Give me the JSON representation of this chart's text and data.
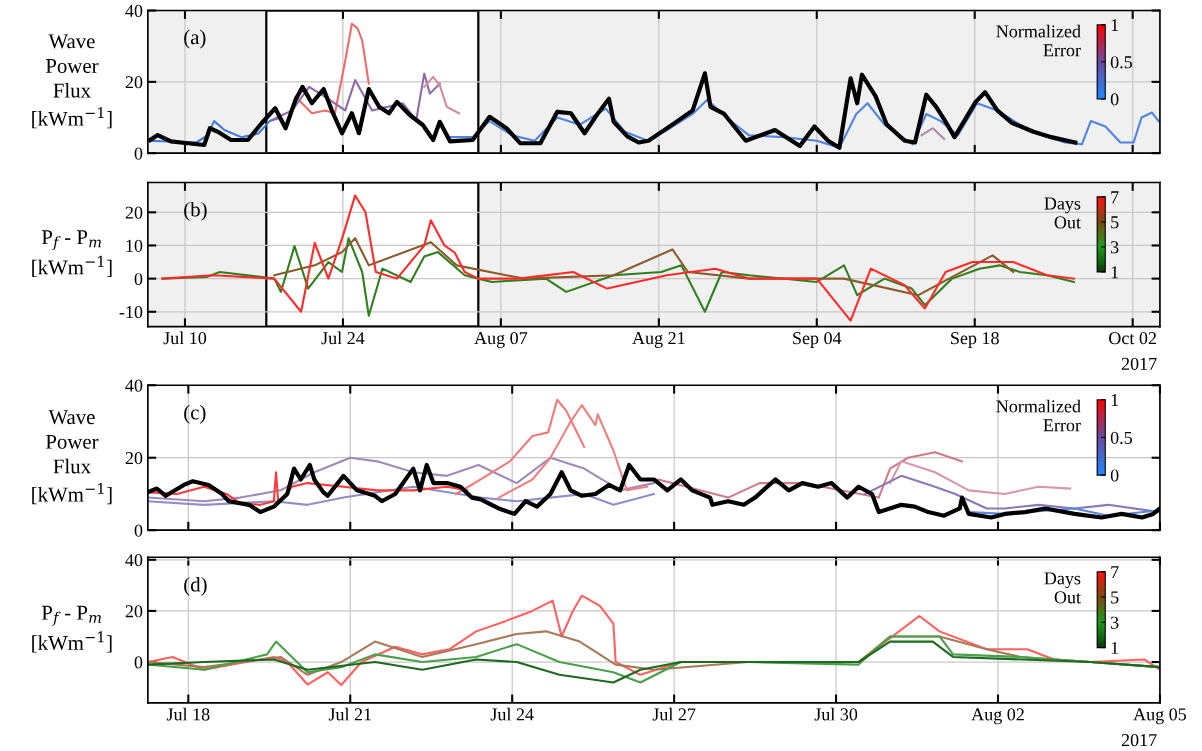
{
  "chart_data": [
    {
      "type": "line",
      "ylabel": "Wave\nPower\nFlux\n[kWm$^{−1}$]",
      "clabel": "Normalized\nError",
      "clim": [
        0,
        1
      ],
      "cticks": [
        0,
        0.5,
        1
      ],
      "annotations": [
        "(a)"
      ],
      "xlim": [
        "2017-07-06T17:00",
        "2017-10-04T10:00"
      ],
      "ylim": [
        0,
        40
      ],
      "yticks": [
        0,
        20,
        40
      ],
      "xticks": [
        {
          "value": "2017-07-10",
          "label": null
        },
        {
          "value": "2017-07-24",
          "label": null
        },
        {
          "value": "2017-08-07",
          "label": null
        },
        {
          "value": "2017-08-21",
          "label": null
        },
        {
          "value": "2017-09-04",
          "label": null
        },
        {
          "value": "2017-09-18",
          "label": null
        },
        {
          "value": "2017-10-02",
          "label": null
        }
      ],
      "tick_labels": "y",
      "grid": true,
      "bands": [
        {
          "axis": "x",
          "from": "2017-07-17T05:00",
          "to": "2017-08-05",
          "color": "#ffffff"
        }
      ],
      "series": [
        {
          "color": "#3f78d8",
          "x": [
            "2017-07-06T22:00",
            "2017-07-09T00:00",
            "2017-07-11T00:00",
            "2017-07-12T00:00",
            "2017-07-12T14:00",
            "2017-07-13T12:00",
            "2017-07-15T00:00",
            "2017-07-16T12:00",
            "2017-07-17T12:00",
            "2017-07-18T12:00"
          ],
          "values": [
            3.5,
            3.2,
            3,
            5,
            9,
            6.5,
            4.5,
            5.5,
            9,
            10
          ]
        },
        {
          "color": "#4f84e0",
          "x": [
            "2017-08-02T12:00",
            "2017-08-04T12:00",
            "2017-08-06T00:00",
            "2017-08-08T00:00",
            "2017-08-10T00:00",
            "2017-08-12T00:00",
            "2017-08-14T00:00",
            "2017-08-16T07:00",
            "2017-08-18T00:00",
            "2017-08-20T00:00",
            "2017-08-22T00:00",
            "2017-08-24T00:00",
            "2017-08-25T07:00",
            "2017-08-27T00:00",
            "2017-08-29T00:00",
            "2017-09-01T00:00",
            "2017-09-04T00:00",
            "2017-09-06T00:00",
            "2017-09-07T12:00",
            "2017-09-08T12:00",
            "2017-09-10T00:00",
            "2017-09-12T12:00",
            "2017-09-13T17:00",
            "2017-09-15T00:00",
            "2017-09-16T12:00",
            "2017-09-18T05:00",
            "2017-09-20T00:00",
            "2017-09-22T00:00",
            "2017-09-24T00:00",
            "2017-09-26T00:00",
            "2017-09-27T12:00",
            "2017-09-28T07:00",
            "2017-09-29T14:00",
            "2017-09-30T22:00",
            "2017-10-02T02:00",
            "2017-10-02T19:00",
            "2017-10-03T17:00",
            "2017-10-04T07:00"
          ],
          "values": [
            4.5,
            4.5,
            9,
            5,
            3.5,
            10,
            8,
            12.5,
            6,
            3.5,
            7,
            11,
            15,
            10,
            5,
            4.5,
            3.5,
            1.5,
            11,
            14,
            8,
            2.5,
            11,
            9,
            5,
            14,
            12,
            8,
            5,
            3,
            2.5,
            9,
            7.5,
            3,
            3,
            10,
            11.4,
            9
          ]
        },
        {
          "color": "#f26a6a",
          "x": [
            "2017-07-19T19:00",
            "2017-07-21T06:00",
            "2017-07-22T10:00",
            "2017-07-23T07:00",
            "2017-07-24T05:00",
            "2017-07-24T19:00",
            "2017-07-25T07:00",
            "2017-07-25T17:00",
            "2017-07-26T07:00"
          ],
          "values": [
            15.8,
            11.2,
            12,
            11.2,
            26,
            36.3,
            35,
            31.6,
            19.5
          ]
        },
        {
          "color": "#8e6aa8",
          "x": [
            "2017-07-17T17:00",
            "2017-07-19T12:00",
            "2017-07-21T00:00",
            "2017-07-22T10:00",
            "2017-07-24T05:00",
            "2017-07-25T02:00",
            "2017-07-26T14:00",
            "2017-07-29T07:00",
            "2017-07-30T12:00",
            "2017-07-31T05:00",
            "2017-07-31T17:00",
            "2017-08-01T14:00"
          ],
          "values": [
            9.3,
            12,
            18.6,
            15.8,
            12,
            20.5,
            12,
            14,
            9.3,
            22.3,
            16.7,
            19.5
          ]
        },
        {
          "color": "#d28a9c",
          "x": [
            "2017-07-31T05:00",
            "2017-08-01T00:00",
            "2017-08-01T14:00",
            "2017-08-02T05:00",
            "2017-08-03T07:00"
          ],
          "values": [
            18.6,
            21.4,
            19,
            13,
            11.2
          ]
        },
        {
          "color": "#b08aa8",
          "x": [
            "2017-09-13T07:00",
            "2017-09-14T07:00",
            "2017-09-15T07:00"
          ],
          "values": [
            5,
            7,
            4
          ]
        },
        {
          "color": "#000000",
          "x": [
            "2017-07-06T22:00",
            "2017-07-07T14:00",
            "2017-07-08T18:00",
            "2017-07-10T06:00",
            "2017-07-11T17:00",
            "2017-07-12T05:00",
            "2017-07-12T22:00",
            "2017-07-14T02:00",
            "2017-07-15T14:00",
            "2017-07-16T19:00",
            "2017-07-18T00:00",
            "2017-07-18T22:00",
            "2017-07-19T19:00",
            "2017-07-20T10:00",
            "2017-07-21T06:00",
            "2017-07-22T07:00",
            "2017-07-23T00:00",
            "2017-07-23T22:00",
            "2017-07-24T19:00",
            "2017-07-25T10:00",
            "2017-07-26T07:00",
            "2017-07-27T05:00",
            "2017-07-28T02:00",
            "2017-07-28T19:00",
            "2017-07-29T22:00",
            "2017-07-31T02:00",
            "2017-08-01T00:00",
            "2017-08-01T14:00",
            "2017-08-02T12:00",
            "2017-08-04T12:00",
            "2017-08-06T00:00",
            "2017-08-07T12:00",
            "2017-08-08T17:00",
            "2017-08-10T12:00",
            "2017-08-12T00:00",
            "2017-08-13T05:00",
            "2017-08-14T10:00",
            "2017-08-15T12:00",
            "2017-08-16T14:00",
            "2017-08-17T00:00",
            "2017-08-18T05:00",
            "2017-08-19T05:00",
            "2017-08-20T02:00",
            "2017-08-22T10:00",
            "2017-08-24T00:00",
            "2017-08-25T02:00",
            "2017-08-25T14:00",
            "2017-08-26T19:00",
            "2017-08-28T17:00",
            "2017-08-31T07:00",
            "2017-09-02T12:00",
            "2017-09-03T19:00",
            "2017-09-05T00:00",
            "2017-09-06T00:00",
            "2017-09-07T00:00",
            "2017-09-07T14:00",
            "2017-09-08T00:00",
            "2017-09-09T05:00",
            "2017-09-10T05:00",
            "2017-09-11T19:00",
            "2017-09-12T17:00",
            "2017-09-13T17:00",
            "2017-09-14T14:00",
            "2017-09-15T07:00",
            "2017-09-16T05:00",
            "2017-09-18T02:00",
            "2017-09-18T22:00",
            "2017-09-20T00:00",
            "2017-09-21T07:00",
            "2017-09-23T05:00",
            "2017-09-24T19:00",
            "2017-09-26T22:00"
          ],
          "values": [
            3.7,
            5.1,
            3.3,
            2.8,
            2.3,
            7,
            6,
            3.7,
            3.7,
            8.4,
            12.6,
            7,
            14.9,
            18.6,
            14,
            18,
            12.1,
            5.6,
            11.2,
            5.6,
            18,
            13,
            11.2,
            14.4,
            10.7,
            7.9,
            3.7,
            8.8,
            3.3,
            3.7,
            10.2,
            7,
            2.8,
            2.8,
            11.6,
            11.2,
            5.6,
            10.7,
            15.3,
            8.8,
            4.7,
            3,
            3.5,
            8.5,
            12,
            22.4,
            13,
            11,
            3.5,
            6.5,
            2,
            7.5,
            3.5,
            1.5,
            21,
            14,
            22,
            16,
            8,
            3.5,
            3,
            16.4,
            13,
            9.5,
            4.5,
            14.4,
            17.1,
            12,
            8.5,
            6,
            4.5,
            3
          ]
        }
      ]
    },
    {
      "type": "line",
      "ylabel": "P$_{f}$ - P$_{m}$\n[kWm$^{−1}$]",
      "clabel": "Days\nOut",
      "clim": [
        1,
        7
      ],
      "cticks": [
        1,
        3,
        5,
        7
      ],
      "annotations": [
        "(b)",
        "2017"
      ],
      "xlim": [
        "2017-07-06T17:00",
        "2017-10-04T10:00"
      ],
      "ylim": [
        -14.5,
        29
      ],
      "yticks": [
        -10,
        0,
        10,
        20
      ],
      "xticks": [
        {
          "value": "2017-07-10",
          "label": "Jul 10"
        },
        {
          "value": "2017-07-24",
          "label": "Jul 24"
        },
        {
          "value": "2017-08-07",
          "label": "Aug 07"
        },
        {
          "value": "2017-08-21",
          "label": "Aug 21"
        },
        {
          "value": "2017-09-04",
          "label": "Sep 04"
        },
        {
          "value": "2017-09-18",
          "label": "Sep 18"
        },
        {
          "value": "2017-10-02",
          "label": "Oct 02"
        }
      ],
      "grid": true,
      "bands": [
        {
          "axis": "x",
          "from": "2017-07-17T05:00",
          "to": "2017-08-05",
          "color": "#ffffff"
        }
      ],
      "series": [
        {
          "color": "#2f7f1f",
          "x": [
            "2017-07-08T00:00",
            "2017-07-11T22:00",
            "2017-07-13T02:00",
            "2017-07-17T22:00",
            "2017-07-18T12:00",
            "2017-07-19T17:00",
            "2017-07-20T22:00",
            "2017-07-22T17:00",
            "2017-07-23T22:00",
            "2017-07-24T12:00",
            "2017-07-25T17:00",
            "2017-07-26T07:00",
            "2017-07-27T12:00",
            "2017-07-30T00:00",
            "2017-07-31T05:00",
            "2017-08-01T10:00",
            "2017-08-03T19:00",
            "2017-08-05T00:00",
            "2017-08-06T05:00",
            "2017-08-11T00:00",
            "2017-08-12T19:00",
            "2017-08-17T00:00",
            "2017-08-21T05:00",
            "2017-08-23T00:00",
            "2017-08-25T02:00",
            "2017-08-26T14:00",
            "2017-08-29T00:00",
            "2017-09-04T00:00",
            "2017-09-06T10:00",
            "2017-09-07T14:00",
            "2017-09-10T00:00",
            "2017-09-12T10:00",
            "2017-09-13T14:00",
            "2017-09-16T00:00",
            "2017-09-18T10:00",
            "2017-09-20T05:00",
            "2017-09-22T00:00",
            "2017-09-24T10:00",
            "2017-09-26T19:00"
          ],
          "values": [
            0,
            0.5,
            2,
            0,
            -4,
            9.8,
            -3,
            5,
            2,
            12.2,
            2,
            -11.2,
            3,
            -1,
            6.7,
            8,
            1,
            0,
            -1,
            0,
            -4,
            1,
            2,
            4,
            -10,
            2,
            1,
            -1,
            4,
            -5,
            0,
            -3,
            -8,
            0,
            3,
            4,
            2,
            1,
            -1
          ]
        },
        {
          "color": "#8a5a2a",
          "x": [
            "2017-07-17T22:00",
            "2017-07-21T12:00",
            "2017-07-23T22:00",
            "2017-07-25T02:00",
            "2017-07-26T07:00",
            "2017-07-31T19:00",
            "2017-08-03T02:00",
            "2017-08-09T00:00",
            "2017-08-17T00:00",
            "2017-08-22T05:00",
            "2017-08-23T14:00",
            "2017-08-29T00:00",
            "2017-09-06T10:00",
            "2017-09-13T00:00",
            "2017-09-19T14:00",
            "2017-09-21T10:00"
          ],
          "values": [
            1,
            4,
            8,
            12.2,
            4,
            11,
            4,
            0,
            1,
            8.8,
            2,
            0,
            0,
            -5,
            7,
            2
          ]
        },
        {
          "color": "#ff2a2a",
          "x": [
            "2017-07-08T00:00",
            "2017-07-12T12:00",
            "2017-07-17T22:00",
            "2017-07-20T07:00",
            "2017-07-21T12:00",
            "2017-07-22T17:00",
            "2017-07-23T22:00",
            "2017-07-25T02:00",
            "2017-07-26T00:00",
            "2017-07-26T22:00",
            "2017-07-28T19:00",
            "2017-07-31T05:00",
            "2017-07-31T19:00",
            "2017-08-02T00:00",
            "2017-08-02T22:00",
            "2017-08-03T19:00",
            "2017-08-05T00:00",
            "2017-08-08T14:00",
            "2017-08-13T10:00",
            "2017-08-16T10:00",
            "2017-08-21T17:00",
            "2017-08-26T00:00",
            "2017-08-29T00:00",
            "2017-09-04T00:00",
            "2017-09-07T00:00",
            "2017-09-08T19:00",
            "2017-09-11T19:00",
            "2017-09-13T14:00",
            "2017-09-15T10:00",
            "2017-09-17T19:00",
            "2017-09-21T10:00",
            "2017-09-24T10:00",
            "2017-09-26T19:00"
          ],
          "values": [
            0,
            1,
            0,
            -10,
            10.8,
            0,
            12,
            25.1,
            20,
            2,
            0,
            10,
            17.6,
            10,
            7.8,
            2,
            0,
            0,
            2,
            -3,
            1,
            3,
            0,
            0,
            -12.7,
            3,
            -2,
            -9,
            2,
            5,
            5,
            1,
            0
          ]
        }
      ]
    },
    {
      "type": "line",
      "ylabel": "Wave\nPower\nFlux\n[kWm$^{−1}$]",
      "clabel": "Normalized\nError",
      "clim": [
        0,
        1
      ],
      "cticks": [
        0,
        0.5,
        1
      ],
      "annotations": [
        "(c)"
      ],
      "xlim": [
        "2017-07-17T06:00",
        "2017-08-05"
      ],
      "ylim": [
        0,
        40
      ],
      "yticks": [
        0,
        20,
        40
      ],
      "xticks": [
        {
          "value": "2017-07-18",
          "label": null
        },
        {
          "value": "2017-07-21",
          "label": null
        },
        {
          "value": "2017-07-24",
          "label": null
        },
        {
          "value": "2017-07-27",
          "label": null
        },
        {
          "value": "2017-07-30",
          "label": null
        },
        {
          "value": "2017-08-02",
          "label": null
        },
        {
          "value": "2017-08-05",
          "label": null
        }
      ],
      "tick_labels": "y",
      "grid": true,
      "series": [
        {
          "color": "#8f8fc8",
          "x": [
            "2017-07-17T06:00",
            "2017-07-18T07:00",
            "2017-07-19T14:00",
            "2017-07-20T05:00",
            "2017-07-20T21:00",
            "2017-07-22T04:00",
            "2017-07-23T10:00",
            "2017-07-24T02:00",
            "2017-07-24T17:00",
            "2017-07-25T08:00",
            "2017-07-25T21:00",
            "2017-07-26T15:00"
          ],
          "values": [
            8,
            7,
            8,
            7,
            9,
            12,
            9,
            8,
            9,
            10,
            7,
            10
          ]
        },
        {
          "color": "#a08ab8",
          "x": [
            "2017-07-17T06:00",
            "2017-07-18T07:00",
            "2017-07-18T23:00",
            "2017-07-19T17:00",
            "2017-07-20T08:00",
            "2017-07-21T00:00",
            "2017-07-21T12:00",
            "2017-07-22T04:00",
            "2017-07-22T19:00",
            "2017-07-23T09:00",
            "2017-07-24T02:00",
            "2017-07-24T17:00",
            "2017-07-25T08:00",
            "2017-07-26T00:00",
            "2017-07-26T15:00"
          ],
          "values": [
            9,
            8,
            9,
            11,
            16,
            20,
            19,
            16,
            15,
            18,
            13,
            20,
            17,
            11,
            13
          ]
        },
        {
          "color": "#ff3a3a",
          "x": [
            "2017-07-17T06:00",
            "2017-07-17T19:00",
            "2017-07-18T07:00",
            "2017-07-18T17:00",
            "2017-07-18T23:00",
            "2017-07-19T08:00",
            "2017-07-19T14:00",
            "2017-07-19T15:00",
            "2017-07-19T16:00",
            "2017-07-19T22:00",
            "2017-07-20T05:00",
            "2017-07-20T21:00",
            "2017-07-21T12:00",
            "2017-07-22T04:00",
            "2017-07-22T19:00",
            "2017-07-23T04:00"
          ],
          "values": [
            10.5,
            10,
            12,
            10,
            7.5,
            7,
            8,
            16,
            7.5,
            12,
            13,
            12,
            11,
            11,
            12,
            11
          ]
        },
        {
          "color": "#f07a7a",
          "x": [
            "2017-07-22T23:00",
            "2017-07-23T10:00",
            "2017-07-23T23:00",
            "2017-07-24T09:00",
            "2017-07-24T16:00",
            "2017-07-24T20:00",
            "2017-07-25T00:00",
            "2017-07-25T04:00",
            "2017-07-25T08:00"
          ],
          "values": [
            10,
            14,
            19,
            26,
            27,
            36,
            33,
            28,
            23
          ]
        },
        {
          "color": "#f08080",
          "x": [
            "2017-07-23T18:00",
            "2017-07-24T09:00",
            "2017-07-24T17:00",
            "2017-07-25T02:00",
            "2017-07-25T07:00",
            "2017-07-25T13:00",
            "2017-07-25T14:00",
            "2017-07-25T21:00",
            "2017-07-26T03:00",
            "2017-07-26T12:00"
          ],
          "values": [
            9,
            14,
            20,
            30,
            34.5,
            29,
            32,
            22,
            11,
            12
          ]
        },
        {
          "color": "#d07a8a",
          "x": [
            "2017-07-26T17:00",
            "2017-07-28T00:00",
            "2017-07-28T14:00",
            "2017-07-29T09:00",
            "2017-07-30T19:00",
            "2017-07-31T00:00",
            "2017-07-31T08:00",
            "2017-07-31T20:00",
            "2017-08-01T08:00"
          ],
          "values": [
            14,
            9,
            13,
            13,
            9,
            17,
            20,
            21.5,
            19
          ]
        },
        {
          "color": "#d898a8",
          "x": [
            "2017-07-31T00:00",
            "2017-07-31T05:00",
            "2017-07-31T20:00",
            "2017-08-01T11:00",
            "2017-08-02T03:00",
            "2017-08-02T18:00",
            "2017-08-03T08:00"
          ],
          "values": [
            13,
            19,
            16,
            11,
            10,
            12,
            11.5
          ]
        },
        {
          "color": "#8a78b8",
          "x": [
            "2017-07-30T13:00",
            "2017-07-31T05:00",
            "2017-07-31T20:00",
            "2017-08-01T05:00",
            "2017-08-01T19:00",
            "2017-08-02T03:00",
            "2017-08-02T18:00",
            "2017-08-03T10:00",
            "2017-08-04T01:00",
            "2017-08-05T00:00"
          ],
          "values": [
            10,
            15,
            12,
            10,
            6,
            6,
            7,
            6,
            7,
            5
          ]
        },
        {
          "color": "#5a88e0",
          "x": [
            "2017-08-01T11:00",
            "2017-08-02T03:00",
            "2017-08-03T10:00",
            "2017-08-04T01:00",
            "2017-08-05T00:00"
          ],
          "values": [
            5,
            4.5,
            6,
            4,
            5.5
          ]
        },
        {
          "color": "#000000",
          "x": [
            "2017-07-17T06:00",
            "2017-07-17T10:00",
            "2017-07-17T14:00",
            "2017-07-17T22:00",
            "2017-07-18T02:00",
            "2017-07-18T09:00",
            "2017-07-18T15:00",
            "2017-07-18T18:00",
            "2017-07-19T03:00",
            "2017-07-19T08:00",
            "2017-07-19T14:00",
            "2017-07-19T20:00",
            "2017-07-19T23:00",
            "2017-07-20T02:00",
            "2017-07-20T06:00",
            "2017-07-20T08:00",
            "2017-07-20T12:00",
            "2017-07-20T14:00",
            "2017-07-20T21:00",
            "2017-07-21T03:00",
            "2017-07-21T11:00",
            "2017-07-21T14:00",
            "2017-07-21T20:00",
            "2017-07-22T04:00",
            "2017-07-22T07:00",
            "2017-07-22T10:00",
            "2017-07-22T13:00",
            "2017-07-22T19:00",
            "2017-07-23T01:00",
            "2017-07-23T06:00",
            "2017-07-23T10:00",
            "2017-07-23T18:00",
            "2017-07-24T01:00",
            "2017-07-24T06:00",
            "2017-07-24T11:00",
            "2017-07-24T17:00",
            "2017-07-24T22:00",
            "2017-07-25T02:00",
            "2017-07-25T07:00",
            "2017-07-25T13:00",
            "2017-07-25T19:00",
            "2017-07-26T00:00",
            "2017-07-26T04:00",
            "2017-07-26T09:00",
            "2017-07-26T15:00",
            "2017-07-26T21:00",
            "2017-07-27T03:00",
            "2017-07-27T08:00",
            "2017-07-27T16:00",
            "2017-07-27T17:00",
            "2017-07-28T00:00",
            "2017-07-28T07:00",
            "2017-07-28T12:00",
            "2017-07-28T21:00",
            "2017-07-29T03:00",
            "2017-07-29T09:00",
            "2017-07-29T16:00",
            "2017-07-29T22:00",
            "2017-07-30T05:00",
            "2017-07-30T10:00",
            "2017-07-30T16:00",
            "2017-07-30T19:00",
            "2017-07-31T05:00",
            "2017-07-31T11:00",
            "2017-07-31T17:00",
            "2017-08-01T00:00",
            "2017-08-01T07:00",
            "2017-08-01T08:00",
            "2017-08-01T11:00",
            "2017-08-01T21:00",
            "2017-08-02T03:00",
            "2017-08-02T12:00",
            "2017-08-02T21:00",
            "2017-08-03T10:00",
            "2017-08-03T22:00",
            "2017-08-04T07:00",
            "2017-08-04T16:00",
            "2017-08-04T21:00",
            "2017-08-05T00:00"
          ],
          "values": [
            10.5,
            11.5,
            9.5,
            12.5,
            13.5,
            12.5,
            10,
            8,
            7,
            5,
            6.5,
            10,
            17,
            14,
            18,
            14,
            10.5,
            9.5,
            15,
            11,
            9.5,
            8,
            10,
            17,
            11,
            18,
            13,
            13,
            12,
            9,
            8.5,
            6,
            4.5,
            8,
            6.5,
            10,
            16,
            11,
            9.5,
            10,
            12.5,
            11,
            18,
            14,
            14,
            11,
            14,
            11,
            9,
            7,
            8,
            7,
            9,
            14,
            11,
            13,
            12,
            13,
            9,
            12,
            10,
            5,
            7,
            6.5,
            5,
            4,
            6,
            9,
            4.5,
            3.5,
            4.5,
            5,
            6,
            4.5,
            3.5,
            4.5,
            3.5,
            4.5,
            6
          ]
        }
      ]
    },
    {
      "type": "line",
      "ylabel": "P$_{f}$ - P$_{m}$\n[kWm$^{−1}$]",
      "clabel": "Days\nOut",
      "clim": [
        1,
        7
      ],
      "cticks": [
        1,
        3,
        5,
        7
      ],
      "annotations": [
        "(d)",
        "2017"
      ],
      "xlim": [
        "2017-07-17T06:00",
        "2017-08-05"
      ],
      "ylim": [
        -16,
        41
      ],
      "yticks": [
        0,
        20,
        40
      ],
      "xticks": [
        {
          "value": "2017-07-18",
          "label": "Jul 18"
        },
        {
          "value": "2017-07-21",
          "label": "Jul 21"
        },
        {
          "value": "2017-07-24",
          "label": "Jul 24"
        },
        {
          "value": "2017-07-27",
          "label": "Jul 27"
        },
        {
          "value": "2017-07-30",
          "label": "Jul 30"
        },
        {
          "value": "2017-08-02",
          "label": "Aug 02"
        },
        {
          "value": "2017-08-05",
          "label": "Aug 05"
        }
      ],
      "grid": true,
      "series": [
        {
          "color": "#ff6060",
          "x": [
            "2017-07-17T06:00",
            "2017-07-17T17:00",
            "2017-07-18T07:00",
            "2017-07-19T14:00",
            "2017-07-19T20:00",
            "2017-07-20T05:00",
            "2017-07-20T14:00",
            "2017-07-20T20:00",
            "2017-07-21T05:00",
            "2017-07-21T20:00",
            "2017-07-22T08:00",
            "2017-07-22T20:00",
            "2017-07-23T08:00",
            "2017-07-23T21:00",
            "2017-07-24T09:00",
            "2017-07-24T18:00",
            "2017-07-24T22:00",
            "2017-07-25T03:00",
            "2017-07-25T07:00",
            "2017-07-25T15:00",
            "2017-07-25T21:00",
            "2017-07-25T22:00",
            "2017-07-26T09:00",
            "2017-07-27T03:00",
            "2017-07-28T09:00",
            "2017-07-29T16:00",
            "2017-07-30T10:00",
            "2017-07-30T22:00",
            "2017-07-31T13:00",
            "2017-07-31T22:00",
            "2017-08-01T19:00",
            "2017-08-02T13:00",
            "2017-08-03T01:00",
            "2017-08-03T17:00",
            "2017-08-04T17:00",
            "2017-08-05T00:00"
          ],
          "values": [
            0,
            2,
            -3,
            2,
            0,
            -8.8,
            -4,
            -9,
            0,
            6,
            3,
            5,
            12,
            16,
            20,
            24,
            10,
            20,
            26,
            22,
            15,
            0,
            -5,
            0,
            0,
            0,
            0,
            8,
            18,
            12,
            5,
            5,
            1,
            0,
            1,
            -3
          ]
        },
        {
          "color": "#a87a5a",
          "x": [
            "2017-07-17T06:00",
            "2017-07-18T07:00",
            "2017-07-19T17:00",
            "2017-07-20T05:00",
            "2017-07-20T20:00",
            "2017-07-21T11:00",
            "2017-07-22T08:00",
            "2017-07-23T08:00",
            "2017-07-24T02:00",
            "2017-07-24T15:00",
            "2017-07-25T06:00",
            "2017-07-25T22:00",
            "2017-07-26T15:00",
            "2017-07-28T09:00",
            "2017-07-30T10:00",
            "2017-07-31T00:00",
            "2017-07-31T22:00",
            "2017-08-01T19:00",
            "2017-08-02T10:00",
            "2017-08-03T17:00",
            "2017-08-05T00:00"
          ],
          "values": [
            0,
            -2,
            2,
            -5,
            0,
            8,
            2,
            7,
            11,
            12,
            8,
            -1,
            -3,
            0,
            0,
            10,
            10,
            5,
            2,
            0,
            -2
          ]
        },
        {
          "color": "#4aa04a",
          "x": [
            "2017-07-17T06:00",
            "2017-07-18T07:00",
            "2017-07-19T11:00",
            "2017-07-19T15:00",
            "2017-07-20T05:00",
            "2017-07-20T20:00",
            "2017-07-21T11:00",
            "2017-07-22T08:00",
            "2017-07-23T08:00",
            "2017-07-24T02:00",
            "2017-07-24T21:00",
            "2017-07-25T21:00",
            "2017-07-26T09:00",
            "2017-07-27T03:00",
            "2017-07-28T09:00",
            "2017-07-30T10:00",
            "2017-07-31T00:00",
            "2017-07-31T22:00",
            "2017-08-01T04:00",
            "2017-08-02T10:00",
            "2017-08-03T17:00",
            "2017-08-05T00:00"
          ],
          "values": [
            -1,
            -3,
            3,
            8,
            -4,
            -2,
            3,
            0,
            2,
            7,
            0,
            -4,
            -8,
            0,
            0,
            -1,
            10,
            10,
            3,
            2,
            0,
            -2
          ]
        },
        {
          "color": "#1e6a1e",
          "x": [
            "2017-07-17T06:00",
            "2017-07-18T07:00",
            "2017-07-19T14:00",
            "2017-07-20T05:00",
            "2017-07-21T11:00",
            "2017-07-22T08:00",
            "2017-07-23T08:00",
            "2017-07-24T02:00",
            "2017-07-24T21:00",
            "2017-07-25T21:00",
            "2017-07-26T09:00",
            "2017-07-27T03:00",
            "2017-07-30T10:00",
            "2017-07-31T00:00",
            "2017-07-31T19:00",
            "2017-08-01T04:00",
            "2017-08-03T17:00",
            "2017-08-05T00:00"
          ],
          "values": [
            -1,
            0,
            1,
            -3,
            0,
            -3,
            1,
            0,
            -5,
            -8,
            -3,
            0,
            0,
            8,
            8,
            2,
            0,
            -2
          ]
        }
      ]
    }
  ]
}
